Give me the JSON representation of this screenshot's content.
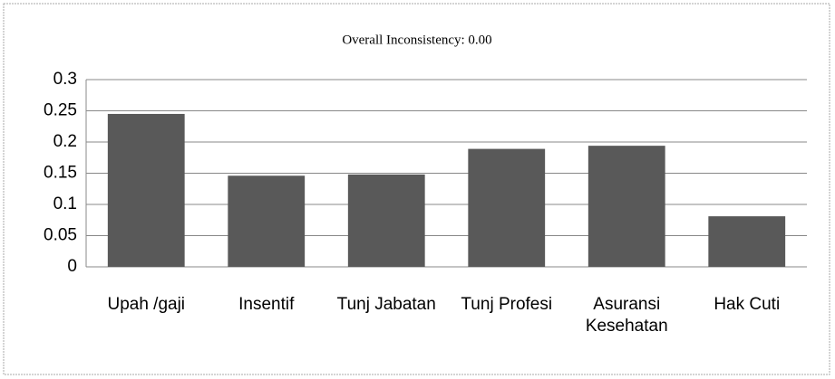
{
  "chart_data": {
    "type": "bar",
    "title": "Overall Inconsistency: 0.00",
    "categories": [
      "Upah /gaji",
      "Insentif",
      "Tunj Jabatan",
      "Tunj Profesi",
      "Asuransi Kesehatan",
      "Hak Cuti"
    ],
    "values": [
      0.245,
      0.146,
      0.148,
      0.189,
      0.194,
      0.081
    ],
    "color": "#595959",
    "ylim": [
      0,
      0.3
    ],
    "yticks": [
      0,
      0.05,
      0.1,
      0.15,
      0.2,
      0.25,
      0.3
    ],
    "grid": true
  }
}
